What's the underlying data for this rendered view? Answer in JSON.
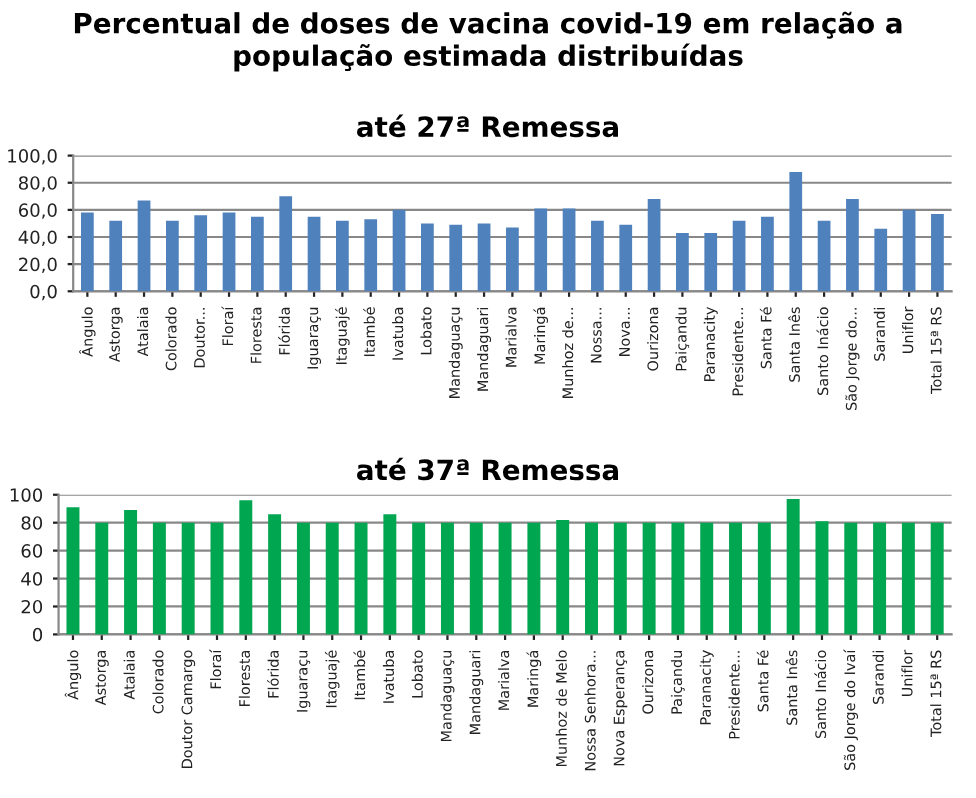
{
  "chart_data": [
    {
      "type": "bar",
      "title": "Percentual de doses de vacina covid-19 em relação a população estimada distribuídas",
      "subtitle": "até 27ª Remessa",
      "categories": [
        "Ângulo",
        "Astorga",
        "Atalaia",
        "Colorado",
        "Doutor...",
        "Floraí",
        "Floresta",
        "Flórida",
        "Iguaraçu",
        "Itaguajé",
        "Itambé",
        "Ivatuba",
        "Lobato",
        "Mandaguaçu",
        "Mandaguari",
        "Marialva",
        "Maringá",
        "Munhoz de...",
        "Nossa...",
        "Nova...",
        "Ourizona",
        "Paiçandu",
        "Paranacity",
        "Presidente...",
        "Santa Fé",
        "Santa Inês",
        "Santo Inácio",
        "São Jorge do...",
        "Sarandi",
        "Uniflor",
        "Total 15ª RS"
      ],
      "values": [
        58,
        52,
        67,
        52,
        56,
        58,
        55,
        70,
        55,
        52,
        53,
        60,
        50,
        49,
        50,
        47,
        61,
        61,
        52,
        49,
        68,
        43,
        43,
        52,
        55,
        88,
        52,
        68,
        46,
        60,
        57
      ],
      "color": "#4f81bd",
      "ylim": [
        0,
        100
      ],
      "yticks": [
        {
          "value": 0,
          "label": "0,0"
        },
        {
          "value": 20,
          "label": "20,0"
        },
        {
          "value": 40,
          "label": "40,0"
        },
        {
          "value": 60,
          "label": "60,0"
        },
        {
          "value": 80,
          "label": "80,0"
        },
        {
          "value": 100,
          "label": "100,0"
        }
      ],
      "grid": "y",
      "legend": false
    },
    {
      "type": "bar",
      "title": "até 37ª Remessa",
      "categories": [
        "Ângulo",
        "Astorga",
        "Atalaia",
        "Colorado",
        "Doutor Camargo",
        "Floraí",
        "Floresta",
        "Flórida",
        "Iguaraçu",
        "Itaguajé",
        "Itambé",
        "Ivatuba",
        "Lobato",
        "Mandaguaçu",
        "Mandaguari",
        "Marialva",
        "Maringá",
        "Munhoz de Melo",
        "Nossa Senhora...",
        "Nova Esperança",
        "Ourizona",
        "Paiçandu",
        "Paranacity",
        "Presidente...",
        "Santa Fé",
        "Santa Inês",
        "Santo Inácio",
        "São Jorge do Ivaí",
        "Sarandi",
        "Uniflor",
        "Total 15ª RS"
      ],
      "values": [
        91,
        80,
        89,
        80,
        80,
        80,
        96,
        86,
        80,
        80,
        80,
        86,
        80,
        80,
        80,
        80,
        80,
        82,
        80,
        80,
        80,
        80,
        80,
        80,
        80,
        97,
        81,
        80,
        80,
        80,
        80
      ],
      "color": "#00a650",
      "ylim": [
        0,
        100
      ],
      "yticks": [
        0,
        20,
        40,
        60,
        80,
        100
      ],
      "grid": "y",
      "legend": false
    }
  ]
}
